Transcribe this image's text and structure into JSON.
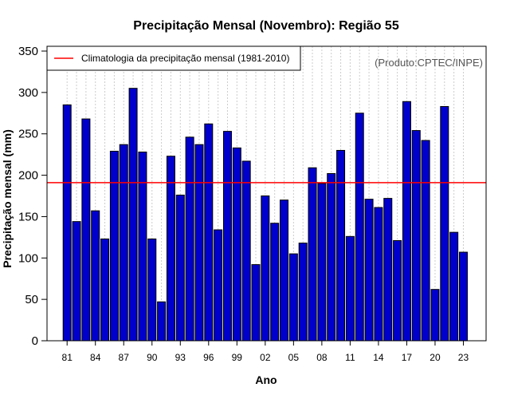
{
  "chart_data": {
    "type": "bar",
    "title": "Precipitação Mensal (Novembro): Região 55",
    "xlabel": "Ano",
    "ylabel": "Precipitação mensal (mm)",
    "ylim": [
      0,
      350
    ],
    "yticks": [
      0,
      50,
      100,
      150,
      200,
      250,
      300,
      350
    ],
    "x_tick_labels": [
      "81",
      "84",
      "87",
      "90",
      "93",
      "96",
      "99",
      "02",
      "05",
      "08",
      "11",
      "14",
      "17",
      "20",
      "23"
    ],
    "years": [
      1981,
      1982,
      1983,
      1984,
      1985,
      1986,
      1987,
      1988,
      1989,
      1990,
      1991,
      1992,
      1993,
      1994,
      1995,
      1996,
      1997,
      1998,
      1999,
      2000,
      2001,
      2002,
      2003,
      2004,
      2005,
      2006,
      2007,
      2008,
      2009,
      2010,
      2011,
      2012,
      2013,
      2014,
      2015,
      2016,
      2017,
      2018,
      2019,
      2020,
      2021,
      2022,
      2023
    ],
    "values": [
      285,
      144,
      268,
      157,
      123,
      229,
      237,
      305,
      228,
      123,
      47,
      223,
      176,
      246,
      237,
      262,
      134,
      253,
      233,
      217,
      92,
      175,
      142,
      170,
      105,
      118,
      209,
      190,
      202,
      230,
      126,
      275,
      171,
      161,
      172,
      121,
      289,
      254,
      242,
      62,
      283,
      131,
      107
    ],
    "climatology": {
      "label": "Climatologia da precipitação mensal (1981-2010)",
      "value": 191
    },
    "annotation": "(Produto:CPTEC/INPE)",
    "bar_color": "#0000cc",
    "line_color": "#ff0000",
    "grid_color": "#cccccc"
  }
}
